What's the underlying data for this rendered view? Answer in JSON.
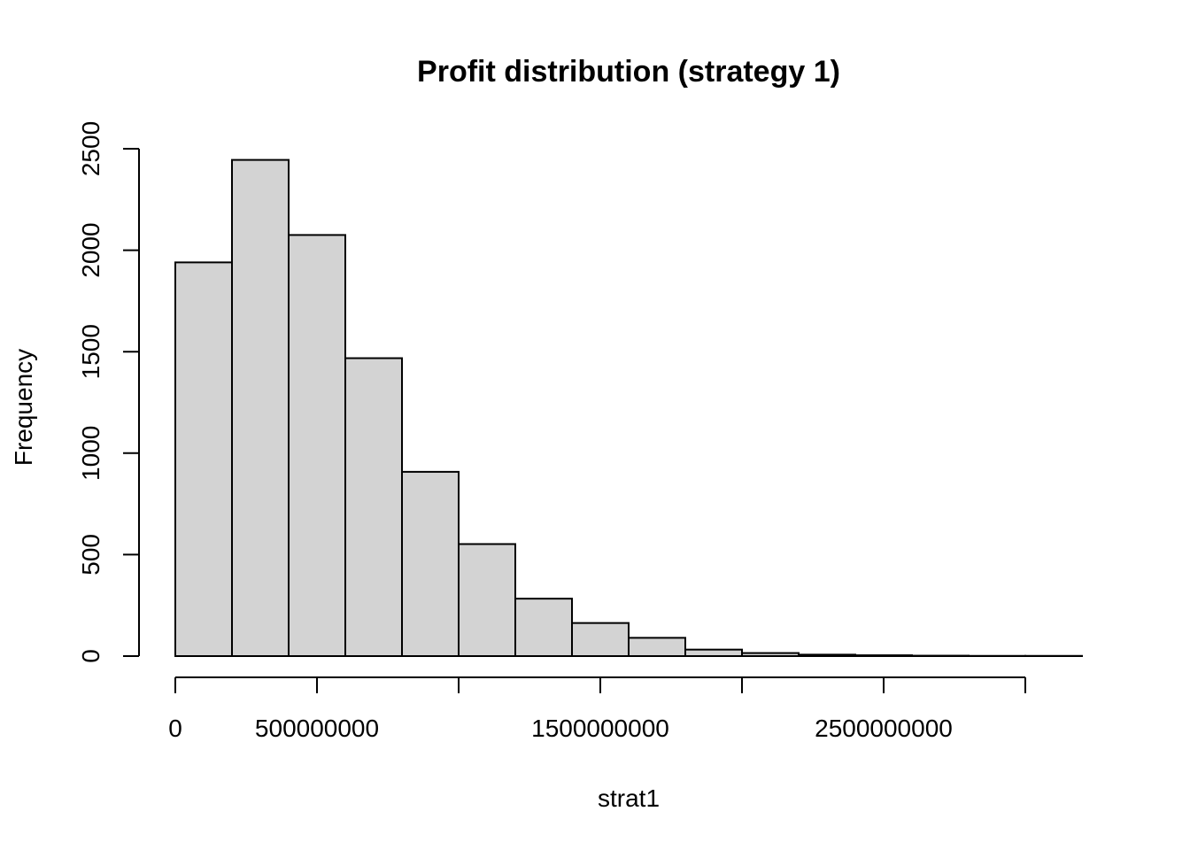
{
  "chart_data": {
    "type": "bar",
    "title": "Profit distribution (strategy 1)",
    "xlabel": "strat1",
    "ylabel": "Frequency",
    "bin_edges": [
      0,
      200000000,
      400000000,
      600000000,
      800000000,
      1000000000,
      1200000000,
      1400000000,
      1600000000,
      1800000000,
      2000000000,
      2200000000,
      2400000000,
      2600000000,
      2800000000,
      3000000000,
      3200000000
    ],
    "values": [
      1940,
      2445,
      2075,
      1468,
      908,
      552,
      283,
      163,
      90,
      32,
      15,
      7,
      4,
      2,
      1,
      1
    ],
    "xlim": [
      0,
      3200000000
    ],
    "ylim": [
      0,
      2500
    ],
    "x_ticks": [
      0,
      500000000,
      1000000000,
      1500000000,
      2000000000,
      2500000000,
      3000000000
    ],
    "x_tick_labels": [
      "0",
      "500000000",
      "",
      "1500000000",
      "",
      "2500000000",
      ""
    ],
    "y_ticks": [
      0,
      500,
      1000,
      1500,
      2000,
      2500
    ],
    "y_tick_labels": [
      "0",
      "500",
      "1000",
      "1500",
      "2000",
      "2500"
    ],
    "bar_color": "#d3d3d3",
    "grid": false,
    "legend": "none"
  }
}
